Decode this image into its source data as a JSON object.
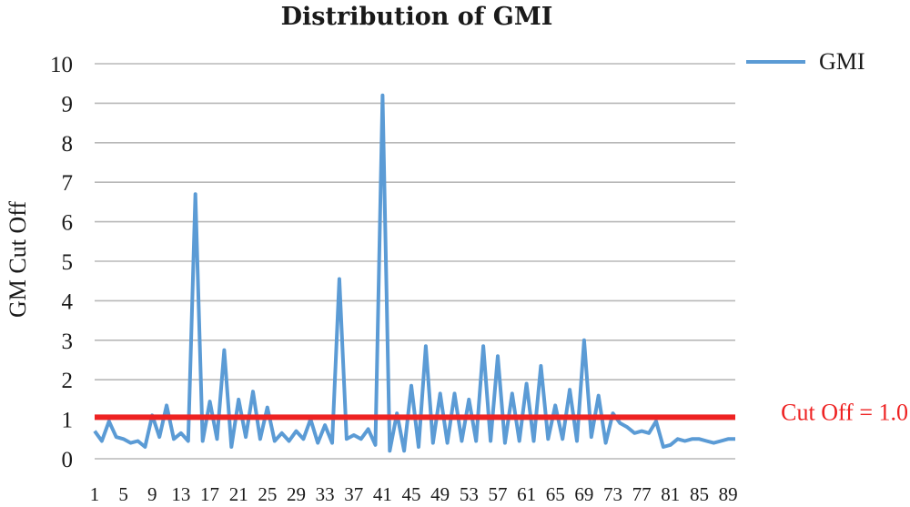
{
  "chart_data": {
    "type": "line",
    "title": "Distribution of GMI",
    "xlabel": "",
    "ylabel": "GM Cut Off",
    "ylim": [
      0,
      10
    ],
    "yticks": [
      "0",
      "1",
      "2",
      "3",
      "4",
      "5",
      "6",
      "7",
      "8",
      "9",
      "10"
    ],
    "xticks": [
      1,
      5,
      9,
      13,
      17,
      21,
      25,
      29,
      33,
      37,
      41,
      45,
      49,
      53,
      57,
      61,
      65,
      69,
      73,
      77,
      81,
      85,
      89
    ],
    "grid": true,
    "legend_position": "top-right",
    "series": [
      {
        "name": "GMI",
        "color": "#5b9bd5",
        "x": [
          1,
          2,
          3,
          4,
          5,
          6,
          7,
          8,
          9,
          10,
          11,
          12,
          13,
          14,
          15,
          16,
          17,
          18,
          19,
          20,
          21,
          22,
          23,
          24,
          25,
          26,
          27,
          28,
          29,
          30,
          31,
          32,
          33,
          34,
          35,
          36,
          37,
          38,
          39,
          40,
          41,
          42,
          43,
          44,
          45,
          46,
          47,
          48,
          49,
          50,
          51,
          52,
          53,
          54,
          55,
          56,
          57,
          58,
          59,
          60,
          61,
          62,
          63,
          64,
          65,
          66,
          67,
          68,
          69,
          70,
          71,
          72,
          73,
          74,
          75,
          76,
          77,
          78,
          79,
          80,
          81,
          82,
          83,
          84,
          85,
          86,
          87,
          88,
          89,
          90
        ],
        "values": [
          0.7,
          0.45,
          0.95,
          0.55,
          0.5,
          0.4,
          0.45,
          0.3,
          1.1,
          0.55,
          1.35,
          0.5,
          0.65,
          0.45,
          6.7,
          0.45,
          1.45,
          0.5,
          2.75,
          0.3,
          1.5,
          0.55,
          1.7,
          0.5,
          1.3,
          0.45,
          0.65,
          0.45,
          0.7,
          0.5,
          1.0,
          0.4,
          0.85,
          0.4,
          4.55,
          0.5,
          0.6,
          0.5,
          0.75,
          0.35,
          9.2,
          0.2,
          1.15,
          0.2,
          1.85,
          0.3,
          2.85,
          0.4,
          1.65,
          0.4,
          1.65,
          0.45,
          1.5,
          0.45,
          2.85,
          0.45,
          2.6,
          0.4,
          1.65,
          0.45,
          1.9,
          0.45,
          2.35,
          0.5,
          1.35,
          0.5,
          1.75,
          0.45,
          3.0,
          0.55,
          1.6,
          0.4,
          1.15,
          0.9,
          0.8,
          0.65,
          0.7,
          0.65,
          0.95,
          0.3,
          0.35,
          0.5,
          0.45,
          0.5,
          0.5,
          0.45,
          0.4,
          0.45,
          0.5,
          0.5
        ]
      }
    ],
    "reference_line": {
      "value": 1.05,
      "label": "Cut Off = 1.0",
      "color": "#ee2222"
    }
  }
}
